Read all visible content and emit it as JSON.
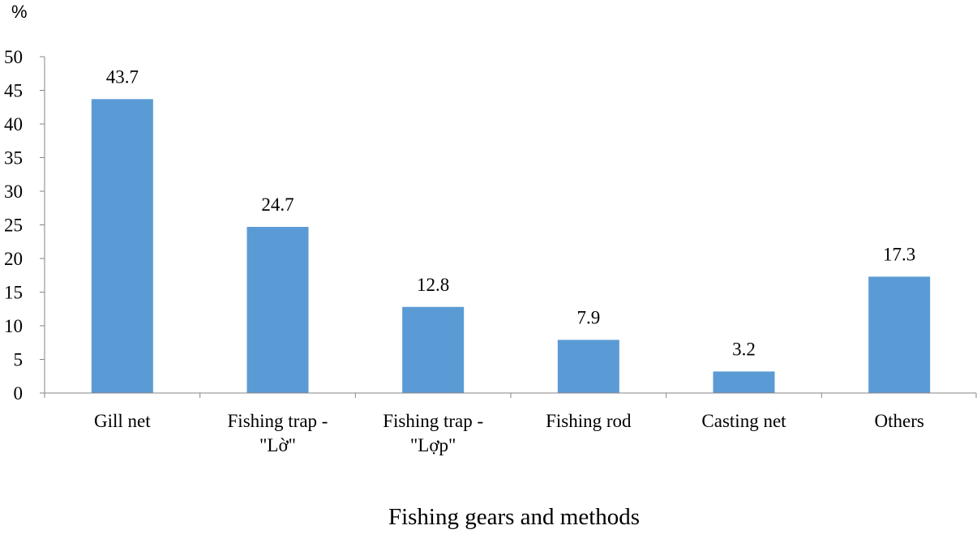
{
  "chart_data": {
    "type": "bar",
    "title": "",
    "xlabel": "Fishing gears and methods",
    "ylabel": "%",
    "ylim": [
      0,
      50
    ],
    "yticks": [
      0,
      5,
      10,
      15,
      20,
      25,
      30,
      35,
      40,
      45,
      50
    ],
    "categories": [
      "Gill net",
      "Fishing trap - \"Lờ\"",
      "Fishing trap - \"Lợp\"",
      "Fishing rod",
      "Casting net",
      "Others"
    ],
    "category_lines": [
      [
        "Gill net"
      ],
      [
        "Fishing trap -",
        "\"Lờ\""
      ],
      [
        "Fishing trap -",
        "\"Lợp\""
      ],
      [
        "Fishing rod"
      ],
      [
        "Casting net"
      ],
      [
        "Others"
      ]
    ],
    "values": [
      43.7,
      24.7,
      12.8,
      7.9,
      3.2,
      17.3
    ],
    "value_labels": [
      "43.7",
      "24.7",
      "12.8",
      "7.9",
      "3.2",
      "17.3"
    ],
    "bar_color": "#5b9bd5",
    "axis_color": "#868686",
    "grid": false,
    "legend": "none"
  }
}
